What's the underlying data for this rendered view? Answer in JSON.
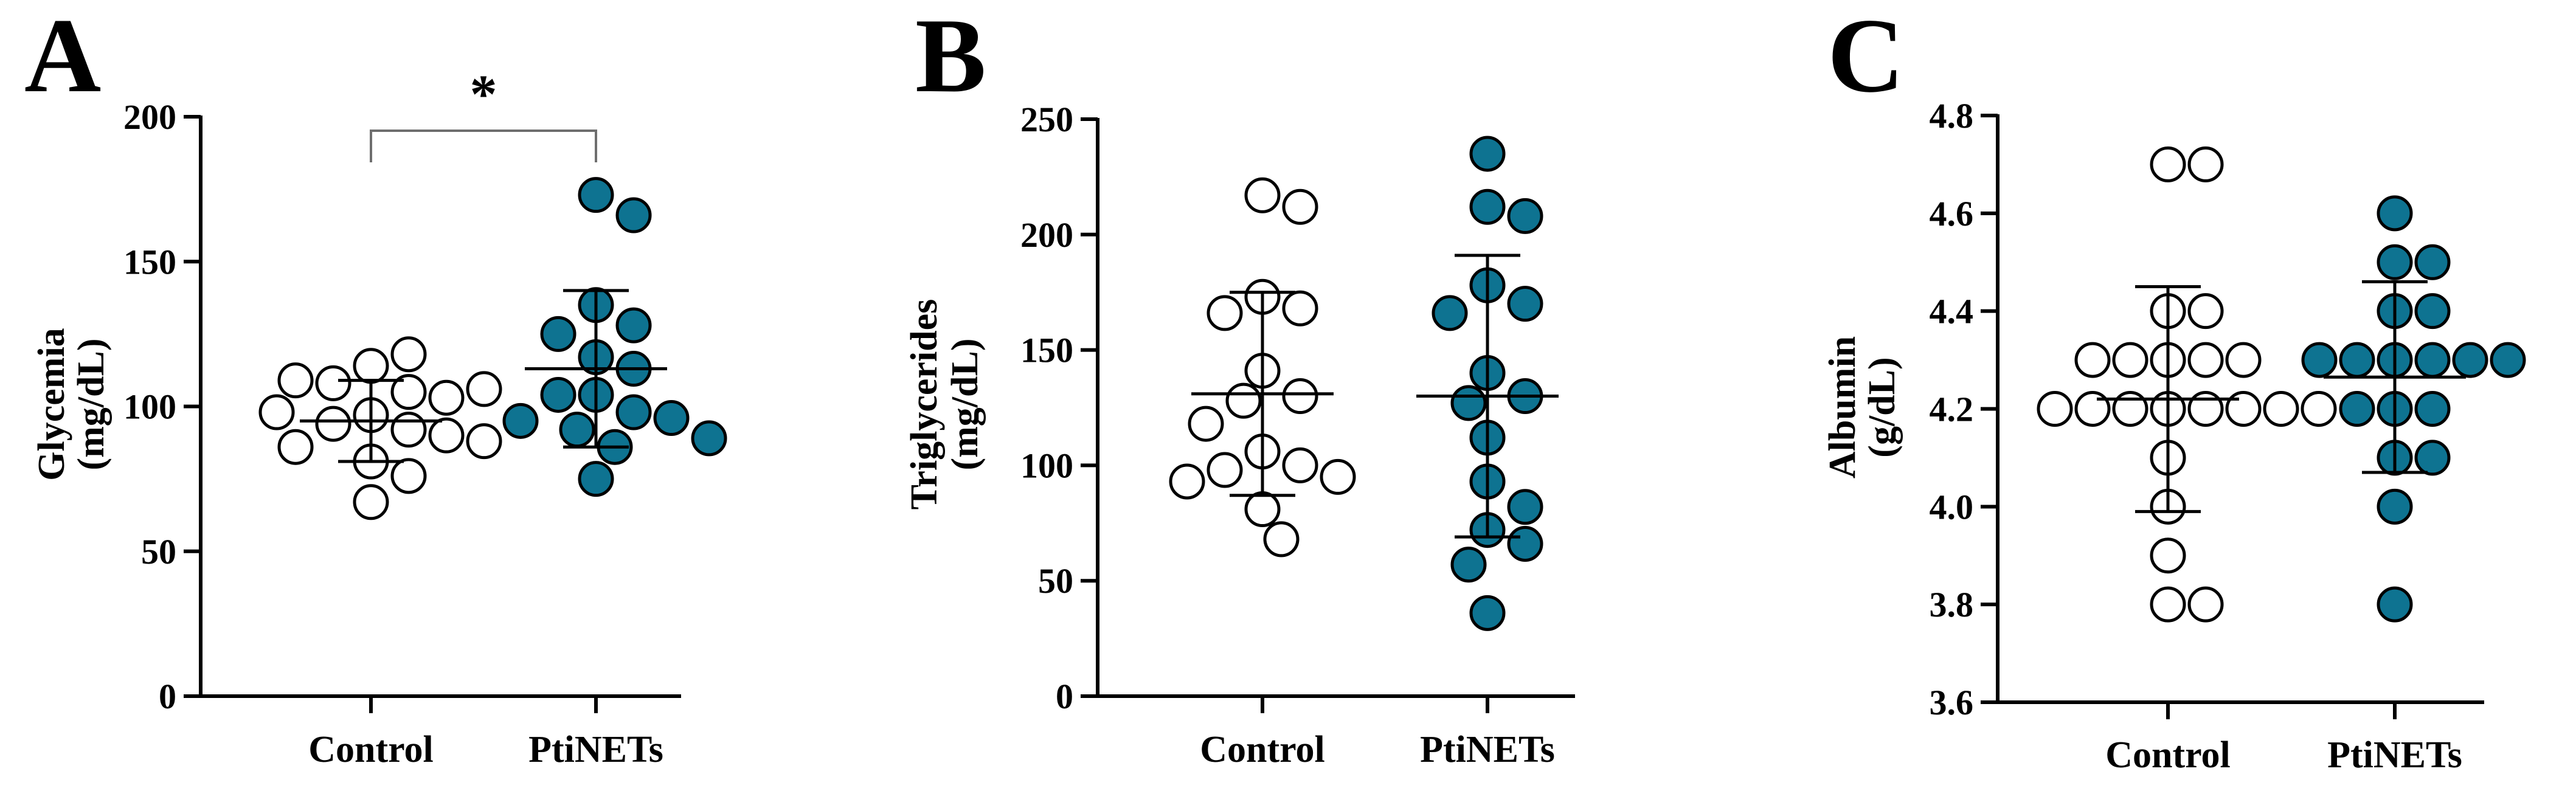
{
  "colors": {
    "control_fill": "#ffffff",
    "ptinets_fill": "#0e7391",
    "stroke": "#000000",
    "bracket": "#6e6e6e"
  },
  "chart_data": [
    {
      "panel": "A",
      "type": "scatter",
      "title": "",
      "ylabel_line1": "Glycemia",
      "ylabel_line2": "(mg/dL)",
      "categories": [
        "Control",
        "PtiNETs"
      ],
      "ylim": [
        0,
        200
      ],
      "yticks": [
        0,
        50,
        100,
        150,
        200
      ],
      "ytick_labels": [
        "0",
        "50",
        "100",
        "150",
        "200"
      ],
      "significance": {
        "label": "*",
        "between": [
          "Control",
          "PtiNETs"
        ]
      },
      "series": [
        {
          "name": "Control",
          "values": [
            114,
            105,
            108,
            118,
            103,
            97,
            109,
            106,
            92,
            98,
            94,
            90,
            88,
            86,
            81,
            76,
            67
          ],
          "mean": 95,
          "sd": 14
        },
        {
          "name": "PtiNETs",
          "values": [
            173,
            166,
            135,
            128,
            125,
            117,
            113,
            104,
            104,
            98,
            96,
            95,
            92,
            89,
            86,
            75
          ],
          "mean": 113,
          "sd": 27
        }
      ]
    },
    {
      "panel": "B",
      "type": "scatter",
      "title": "",
      "ylabel_line1": "Triglycerides",
      "ylabel_line2": "(mg/dL)",
      "categories": [
        "Control",
        "PtiNETs"
      ],
      "ylim": [
        0,
        250
      ],
      "yticks": [
        0,
        50,
        100,
        150,
        200,
        250
      ],
      "ytick_labels": [
        "0",
        "50",
        "100",
        "150",
        "200",
        "250"
      ],
      "series": [
        {
          "name": "Control",
          "values": [
            217,
            212,
            173,
            168,
            166,
            141,
            130,
            128,
            118,
            106,
            100,
            98,
            95,
            93,
            81,
            68
          ],
          "mean": 131,
          "sd": 44
        },
        {
          "name": "PtiNETs",
          "values": [
            235,
            212,
            208,
            178,
            170,
            166,
            140,
            130,
            127,
            112,
            93,
            82,
            72,
            66,
            57,
            36
          ],
          "mean": 130,
          "sd": 61
        }
      ]
    },
    {
      "panel": "C",
      "type": "scatter",
      "title": "",
      "ylabel_line1": "Albumin",
      "ylabel_line2": "(g/dL)",
      "categories": [
        "Control",
        "PtiNETs"
      ],
      "ylim": [
        3.6,
        4.8
      ],
      "yticks": [
        3.6,
        3.8,
        4.0,
        4.2,
        4.4,
        4.6,
        4.8
      ],
      "ytick_labels": [
        "3.6",
        "3.8",
        "4.0",
        "4.2",
        "4.4",
        "4.6",
        "4.8"
      ],
      "series": [
        {
          "name": "Control",
          "values": [
            4.7,
            4.7,
            4.4,
            4.4,
            4.3,
            4.3,
            4.3,
            4.3,
            4.3,
            4.2,
            4.2,
            4.2,
            4.2,
            4.2,
            4.2,
            4.2,
            4.2,
            4.1,
            4.0,
            3.9,
            3.8,
            3.8
          ],
          "mean": 4.22,
          "sd": 0.23
        },
        {
          "name": "PtiNETs",
          "values": [
            4.6,
            4.5,
            4.5,
            4.4,
            4.4,
            4.3,
            4.3,
            4.3,
            4.3,
            4.3,
            4.3,
            4.2,
            4.2,
            4.2,
            4.1,
            4.1,
            4.0,
            3.8
          ],
          "mean": 4.265,
          "sd": 0.195
        }
      ]
    }
  ]
}
